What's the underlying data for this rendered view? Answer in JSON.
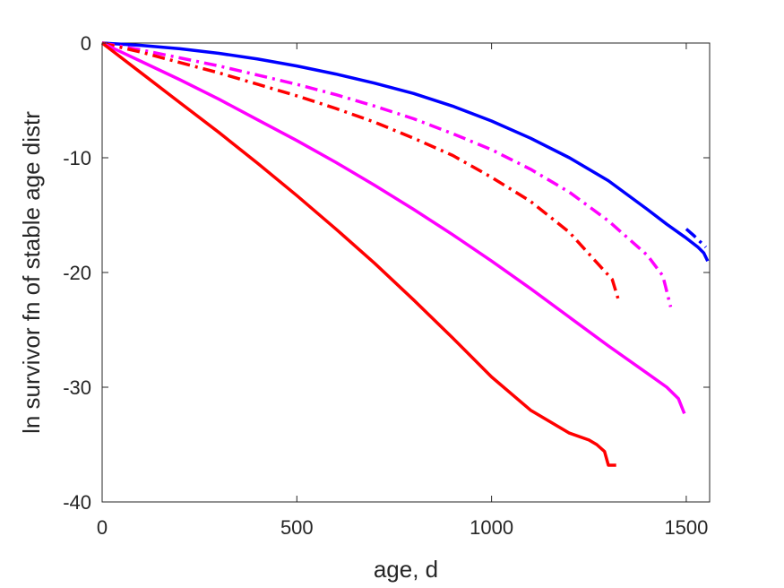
{
  "chart_data": {
    "type": "line",
    "title": "",
    "xlabel": "age, d",
    "ylabel": "ln survivor fn of stable age distr",
    "xlim": [
      0,
      1560
    ],
    "ylim": [
      -40,
      0
    ],
    "xticks": [
      0,
      500,
      1000,
      1500
    ],
    "yticks": [
      0,
      -10,
      -20,
      -30,
      -40
    ],
    "xtick_labels": [
      "0",
      "500",
      "1000",
      "1500"
    ],
    "ytick_labels": [
      "0",
      "-10",
      "-20",
      "-30",
      "-40"
    ],
    "grid": false,
    "legend": "none",
    "series": [
      {
        "color": "#0000ff",
        "style": "solid",
        "x": [
          0,
          100,
          200,
          300,
          400,
          500,
          600,
          700,
          800,
          900,
          1000,
          1100,
          1200,
          1300,
          1400,
          1450,
          1500,
          1530,
          1545,
          1555
        ],
        "y": [
          0,
          -0.2,
          -0.5,
          -0.9,
          -1.4,
          -2.0,
          -2.7,
          -3.5,
          -4.4,
          -5.5,
          -6.8,
          -8.3,
          -10.0,
          -12.0,
          -14.5,
          -15.8,
          -17.0,
          -17.8,
          -18.3,
          -19.0
        ]
      },
      {
        "color": "#0000ff",
        "style": "dashdot",
        "x": [
          1500,
          1520,
          1535,
          1545,
          1550
        ],
        "y": [
          -16.2,
          -16.8,
          -17.3,
          -17.6,
          -17.8
        ]
      },
      {
        "color": "#ff00ff",
        "style": "dashdot",
        "x": [
          0,
          100,
          200,
          300,
          400,
          500,
          600,
          700,
          800,
          900,
          1000,
          1100,
          1200,
          1300,
          1400,
          1440,
          1460
        ],
        "y": [
          0,
          -0.6,
          -1.3,
          -2.0,
          -2.8,
          -3.6,
          -4.5,
          -5.5,
          -6.6,
          -7.9,
          -9.3,
          -11.0,
          -13.0,
          -15.5,
          -18.5,
          -20.3,
          -23.0
        ]
      },
      {
        "color": "#ff0000",
        "style": "dashdot",
        "x": [
          0,
          100,
          200,
          300,
          400,
          500,
          600,
          700,
          800,
          900,
          1000,
          1100,
          1200,
          1280,
          1310,
          1325
        ],
        "y": [
          0,
          -0.8,
          -1.7,
          -2.6,
          -3.6,
          -4.6,
          -5.7,
          -6.9,
          -8.3,
          -9.8,
          -11.7,
          -13.8,
          -16.5,
          -19.5,
          -20.6,
          -22.3
        ]
      },
      {
        "color": "#ff00ff",
        "style": "solid",
        "x": [
          0,
          100,
          200,
          300,
          400,
          500,
          600,
          700,
          800,
          900,
          1000,
          1100,
          1200,
          1300,
          1400,
          1450,
          1480,
          1495
        ],
        "y": [
          0,
          -1.6,
          -3.2,
          -4.9,
          -6.7,
          -8.5,
          -10.4,
          -12.4,
          -14.5,
          -16.7,
          -19.0,
          -21.4,
          -23.9,
          -26.4,
          -28.8,
          -30.0,
          -31.0,
          -32.3
        ]
      },
      {
        "color": "#ff0000",
        "style": "solid",
        "x": [
          0,
          100,
          200,
          300,
          400,
          500,
          600,
          700,
          800,
          900,
          1000,
          1100,
          1200,
          1250,
          1270,
          1290,
          1300,
          1305,
          1320
        ],
        "y": [
          0,
          -2.6,
          -5.2,
          -7.8,
          -10.5,
          -13.3,
          -16.2,
          -19.2,
          -22.4,
          -25.7,
          -29.1,
          -32.0,
          -34.0,
          -34.6,
          -35.0,
          -35.6,
          -36.8,
          -36.8,
          -36.8
        ]
      }
    ]
  }
}
